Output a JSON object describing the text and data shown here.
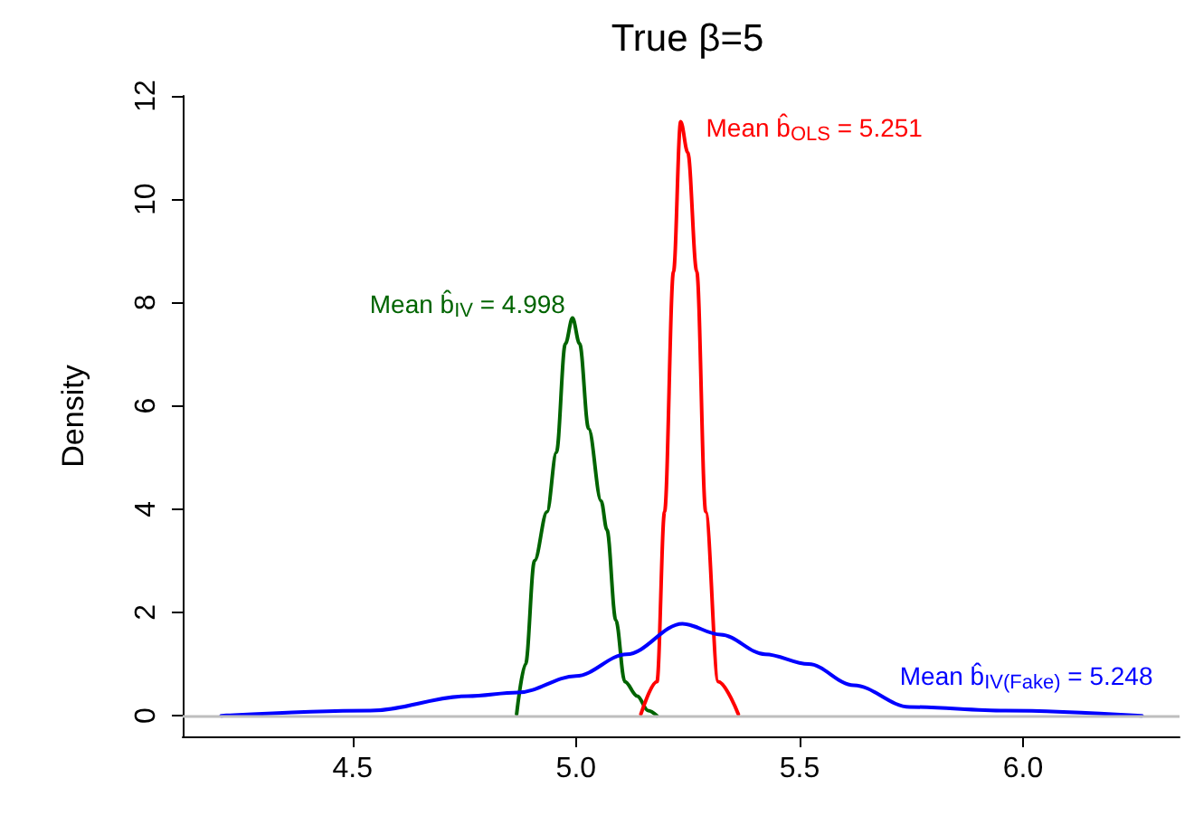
{
  "chart_data": {
    "type": "line",
    "title": "True β=5",
    "ylabel": "Density",
    "xlim": [
      4.12,
      6.35
    ],
    "xticks": [
      4.5,
      {
        "value": 5,
        "label": "5.0"
      },
      5.5,
      {
        "value": 6,
        "label": "6.0"
      }
    ],
    "ylim": [
      -0.4,
      12
    ],
    "yticks": [
      0,
      2,
      4,
      6,
      8,
      10,
      12
    ],
    "grid": false,
    "marker": "none",
    "line_style": "solid",
    "ref_lines": [
      {
        "axis": "y",
        "value": 0,
        "color": "#bebebe"
      }
    ],
    "series": [
      {
        "color": "#006400",
        "x": [
          4.867,
          4.887,
          4.907,
          4.935,
          4.956,
          4.976,
          4.992,
          5.008,
          5.028,
          5.056,
          5.069,
          5.089,
          5.109,
          5.137,
          5.161,
          5.181
        ],
        "values": [
          0.03,
          1.0,
          3.0,
          3.95,
          5.1,
          7.2,
          7.7,
          7.2,
          5.56,
          4.16,
          3.6,
          1.85,
          0.66,
          0.38,
          0.1,
          0
        ]
      },
      {
        "color": "#ff0000",
        "x": [
          5.145,
          5.181,
          5.198,
          5.218,
          5.234,
          5.25,
          5.27,
          5.29,
          5.318,
          5.363
        ],
        "values": [
          0.03,
          0.66,
          3.95,
          8.6,
          11.5,
          10.9,
          8.6,
          3.95,
          0.66,
          0.03
        ]
      },
      {
        "color": "#0000ff",
        "x": [
          4.206,
          4.54,
          4.758,
          4.87,
          5.0,
          5.113,
          5.238,
          5.323,
          5.423,
          5.52,
          5.621,
          5.746,
          5.96,
          6.266
        ],
        "values": [
          0,
          0.1,
          0.38,
          0.45,
          0.77,
          1.19,
          1.78,
          1.57,
          1.19,
          1.0,
          0.59,
          0.17,
          0.1,
          0
        ]
      }
    ],
    "annotations": [
      "Mean b̂$_{IV}$ = 4.998",
      "Mean b̂$_{OLS}$ = 5.251",
      "Mean b̂$_{IV(Fake)}$ = 5.248"
    ]
  }
}
